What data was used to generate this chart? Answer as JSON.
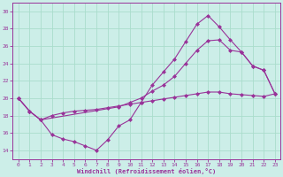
{
  "xlabel": "Windchill (Refroidissement éolien,°C)",
  "background_color": "#cceee8",
  "grid_color": "#aaddcc",
  "line_color": "#993399",
  "xlim": [
    -0.5,
    23.5
  ],
  "ylim": [
    13.0,
    31.0
  ],
  "yticks": [
    14,
    16,
    18,
    20,
    22,
    24,
    26,
    28,
    30
  ],
  "xticks": [
    0,
    1,
    2,
    3,
    4,
    5,
    6,
    7,
    8,
    9,
    10,
    11,
    12,
    13,
    14,
    15,
    16,
    17,
    18,
    19,
    20,
    21,
    22,
    23
  ],
  "line1_x": [
    0,
    1,
    2,
    3,
    4,
    5,
    6,
    7,
    8,
    9,
    10,
    11,
    12,
    13,
    14,
    15,
    16,
    17,
    18,
    19,
    20,
    21,
    22,
    23
  ],
  "line1_y": [
    20.0,
    18.5,
    17.5,
    15.8,
    15.3,
    15.0,
    14.5,
    14.0,
    15.2,
    16.8,
    17.5,
    19.5,
    21.5,
    23.0,
    24.5,
    26.5,
    28.5,
    29.5,
    28.2,
    26.7,
    25.3,
    23.7,
    23.2,
    20.5
  ],
  "line2_x": [
    0,
    1,
    2,
    9,
    10,
    11,
    12,
    13,
    14,
    15,
    16,
    17,
    18,
    19,
    20,
    21,
    22,
    23
  ],
  "line2_y": [
    20.0,
    18.5,
    17.5,
    19.0,
    19.5,
    20.0,
    20.8,
    21.5,
    22.5,
    24.0,
    25.5,
    26.6,
    26.7,
    25.5,
    25.3,
    23.7,
    23.2,
    20.5
  ],
  "line3_x": [
    0,
    1,
    2,
    3,
    4,
    5,
    6,
    7,
    8,
    9,
    10,
    11,
    12,
    13,
    14,
    15,
    16,
    17,
    18,
    19,
    20,
    21,
    22,
    23
  ],
  "line3_y": [
    20.0,
    18.5,
    17.5,
    18.0,
    18.3,
    18.5,
    18.6,
    18.7,
    18.9,
    19.1,
    19.3,
    19.5,
    19.7,
    19.9,
    20.1,
    20.3,
    20.5,
    20.7,
    20.7,
    20.5,
    20.4,
    20.3,
    20.2,
    20.5
  ]
}
